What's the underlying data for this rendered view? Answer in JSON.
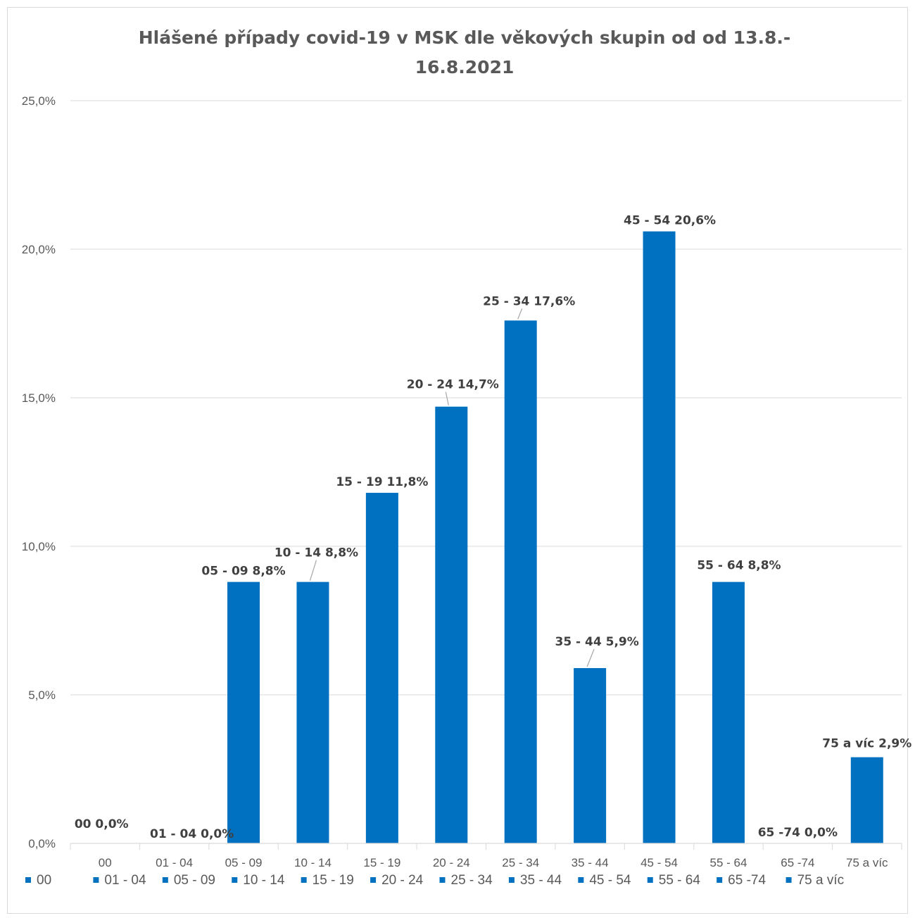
{
  "chart_data": {
    "type": "bar",
    "title": "Hlášené případy covid-19 v MSK dle věkových skupin od od 13.8.-16.8.2021",
    "title_lines": [
      "Hlášené případy covid-19 v MSK dle věkových skupin od od 13.8.-",
      "16.8.2021"
    ],
    "categories": [
      "00",
      "01 - 04",
      "05 - 09",
      "10 - 14",
      "15 - 19",
      "20 - 24",
      "25 - 34",
      "35 - 44",
      "45 - 54",
      "55 - 64",
      "65 -74",
      "75 a víc"
    ],
    "values": [
      0.0,
      0.0,
      8.8,
      8.8,
      11.8,
      14.7,
      17.6,
      5.9,
      20.6,
      8.8,
      0.0,
      2.9
    ],
    "data_labels": [
      "00 0,0%",
      "01 - 04 0,0%",
      "05 - 09 8,8%",
      "10 - 14 8,8%",
      "15 - 19 11,8%",
      "20 - 24 14,7%",
      "25 - 34 17,6%",
      "35 - 44 5,9%",
      "45 - 54 20,6%",
      "55 - 64 8,8%",
      "65 -74 0,0%",
      "75 a víc 2,9%"
    ],
    "ylim": [
      0,
      25
    ],
    "yticks": [
      0,
      5,
      10,
      15,
      20,
      25
    ],
    "ytick_labels": [
      "0,0%",
      "5,0%",
      "10,0%",
      "15,0%",
      "20,0%",
      "25,0%"
    ],
    "xlabel": "",
    "ylabel": "",
    "grid": true,
    "legend": {
      "position": "bottom",
      "entries": [
        "00",
        "01 - 04",
        "05 - 09",
        "10 - 14",
        "15 - 19",
        "20 - 24",
        "25 - 34",
        "35 - 44",
        "45 - 54",
        "55 - 64",
        "65 -74",
        "75 a víc"
      ]
    },
    "bar_color": "#0070C0"
  }
}
